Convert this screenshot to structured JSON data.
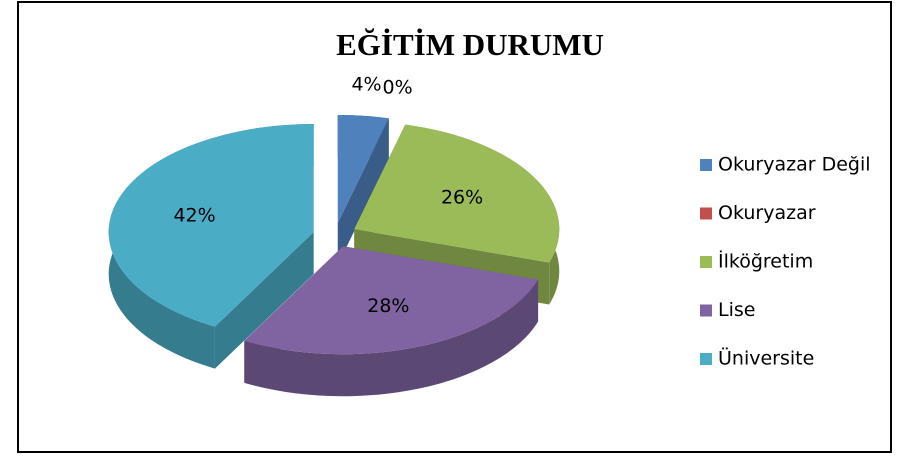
{
  "chart_data": {
    "type": "pie",
    "title": "EĞİTİM DURUMU",
    "categories": [
      "Okuryazar Değil",
      "Okuryazar",
      "İlköğretim",
      "Lise",
      "Üniversite"
    ],
    "values": [
      4,
      0,
      26,
      28,
      42
    ],
    "value_labels": [
      "4%",
      "0%",
      "26%",
      "28%",
      "42%"
    ],
    "colors": [
      "#4f81bd",
      "#c0504d",
      "#9bbb59",
      "#8064a2",
      "#4bacc6"
    ],
    "legend": "right"
  }
}
